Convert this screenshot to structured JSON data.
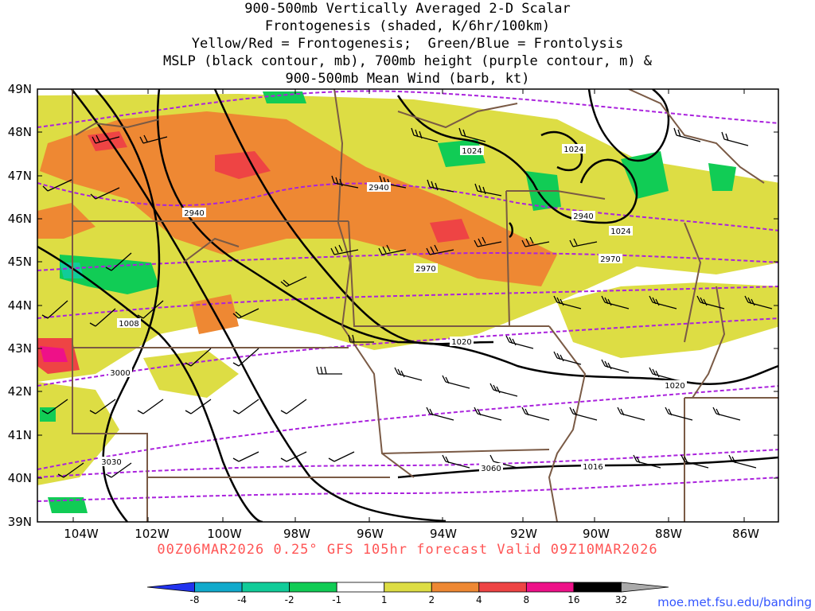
{
  "title": {
    "line1": "900-500mb Vertically Averaged 2-D Scalar",
    "line2": "Frontogenesis (shaded, K/6hr/100km)",
    "line3": "Yellow/Red = Frontogenesis;  Green/Blue = Frontolysis",
    "line4": "MSLP (black contour, mb), 700mb height (purple contour, m) &",
    "line5": "900-500mb Mean Wind (barb, kt)"
  },
  "lat_labels": [
    "49N",
    "48N",
    "47N",
    "46N",
    "45N",
    "44N",
    "43N",
    "42N",
    "41N",
    "40N",
    "39N"
  ],
  "lon_labels": [
    "104W",
    "102W",
    "100W",
    "98W",
    "96W",
    "94W",
    "92W",
    "90W",
    "88W",
    "86W"
  ],
  "mslp_labels": [
    "1024",
    "1024",
    "1024",
    "1020",
    "1020",
    "1008",
    "1016"
  ],
  "height_labels": [
    "2940",
    "2940",
    "2940",
    "2970",
    "2970",
    "3000",
    "3030",
    "3060"
  ],
  "valid_text": "00Z06MAR2026 0.25° GFS 105hr forecast Valid 09Z10MAR2026",
  "credit": "moe.met.fsu.edu/banding",
  "colorbar": {
    "colors": [
      "#2233ee",
      "#11aacc",
      "#11cc99",
      "#11cc55",
      "#ffffff",
      "#dddd44",
      "#ee8833",
      "#ee4444",
      "#ee1188",
      "#000000",
      "#aaaaaa"
    ],
    "labels": [
      "-8",
      "-4",
      "-2",
      "-1",
      "1",
      "2",
      "4",
      "8",
      "16",
      "32"
    ]
  },
  "colors": {
    "mslp": "#000000",
    "height": "#aa22dd",
    "borders": "#7a5a45",
    "frontogenesis_low": "#dddd44",
    "frontogenesis_mid": "#ee8833",
    "frontogenesis_high": "#ee4444",
    "frontolysis": "#11cc55"
  }
}
